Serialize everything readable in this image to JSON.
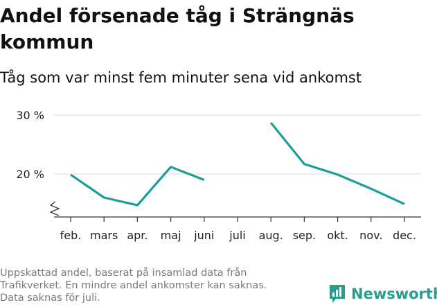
{
  "title_line1": "Andel försenade tåg i Strängnäs",
  "title_line2": "kommun",
  "subtitle": "Tåg som var minst fem minuter sena vid ankomst",
  "footnote": [
    "Uppskattad andel, baserat på insamlad data från",
    "Trafikverket. En mindre andel ankomster kan saknas.",
    "Data saknas för juli."
  ],
  "brand": {
    "name": "Newsworthy",
    "color": "#2a9d8f",
    "icon": "newsworthy-logo-icon"
  },
  "chart_data": {
    "type": "line",
    "title": "Andel försenade tåg i Strängnäs kommun",
    "subtitle": "Tåg som var minst fem minuter sena vid ankomst",
    "categories": [
      "feb.",
      "mars",
      "apr.",
      "maj",
      "juni",
      "juli",
      "aug.",
      "sep.",
      "okt.",
      "nov.",
      "dec."
    ],
    "series": [
      {
        "values": [
          19.9,
          16.0,
          14.7,
          21.2,
          19.0,
          null,
          28.7,
          21.7,
          19.9,
          17.5,
          14.9
        ],
        "color": "#1a9e95"
      }
    ],
    "yticks": [
      {
        "value": 20,
        "label": "20 %"
      },
      {
        "value": 30,
        "label": "30 %"
      }
    ],
    "ylim": [
      13,
      31
    ],
    "axis_break": true,
    "grid": "horizontal",
    "legend": "none"
  }
}
